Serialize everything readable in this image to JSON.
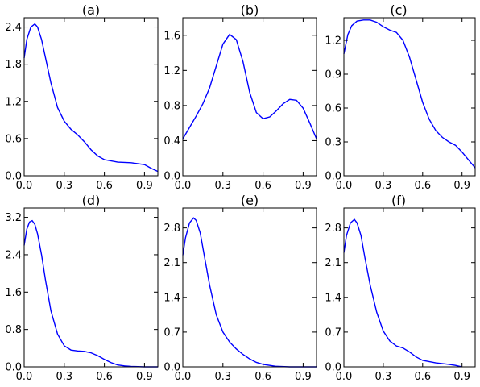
{
  "chart_data": [
    {
      "type": "line",
      "title": "(a)",
      "xlim": [
        0,
        1
      ],
      "ylim": [
        0,
        2.55
      ],
      "xticks": [
        "0.0",
        "0.3",
        "0.6",
        "0.9"
      ],
      "xtick_values": [
        0,
        0.3,
        0.6,
        0.9
      ],
      "yticks": [
        "0.0",
        "0.6",
        "1.2",
        "1.8",
        "2.4"
      ],
      "ytick_values": [
        0,
        0.6,
        1.2,
        1.8,
        2.4
      ],
      "grid": false,
      "series": [
        {
          "color": "#0000ff",
          "x": [
            0.0,
            0.02,
            0.05,
            0.08,
            0.1,
            0.13,
            0.16,
            0.2,
            0.25,
            0.3,
            0.35,
            0.4,
            0.45,
            0.5,
            0.55,
            0.6,
            0.7,
            0.8,
            0.9,
            0.95,
            1.0
          ],
          "y": [
            1.9,
            2.2,
            2.4,
            2.45,
            2.4,
            2.2,
            1.9,
            1.5,
            1.1,
            0.88,
            0.75,
            0.66,
            0.55,
            0.42,
            0.32,
            0.26,
            0.22,
            0.21,
            0.18,
            0.12,
            0.07
          ]
        }
      ]
    },
    {
      "type": "line",
      "title": "(b)",
      "xlim": [
        0,
        1
      ],
      "ylim": [
        0,
        1.8
      ],
      "xticks": [
        "0.0",
        "0.3",
        "0.6",
        "0.9"
      ],
      "xtick_values": [
        0,
        0.3,
        0.6,
        0.9
      ],
      "yticks": [
        "0.0",
        "0.4",
        "0.8",
        "1.2",
        "1.6"
      ],
      "ytick_values": [
        0,
        0.4,
        0.8,
        1.2,
        1.6
      ],
      "grid": false,
      "series": [
        {
          "color": "#0000ff",
          "x": [
            0.0,
            0.05,
            0.1,
            0.15,
            0.2,
            0.25,
            0.3,
            0.35,
            0.4,
            0.45,
            0.5,
            0.55,
            0.6,
            0.65,
            0.7,
            0.75,
            0.8,
            0.85,
            0.9,
            0.95,
            1.0
          ],
          "y": [
            0.42,
            0.55,
            0.68,
            0.82,
            1.0,
            1.25,
            1.5,
            1.61,
            1.55,
            1.3,
            0.95,
            0.72,
            0.65,
            0.67,
            0.74,
            0.82,
            0.87,
            0.86,
            0.77,
            0.6,
            0.42
          ]
        }
      ]
    },
    {
      "type": "line",
      "title": "(c)",
      "xlim": [
        0,
        1
      ],
      "ylim": [
        0,
        1.4
      ],
      "xticks": [
        "0.0",
        "0.3",
        "0.6",
        "0.9"
      ],
      "xtick_values": [
        0,
        0.3,
        0.6,
        0.9
      ],
      "yticks": [
        "0.0",
        "0.3",
        "0.6",
        "0.9",
        "1.2"
      ],
      "ytick_values": [
        0,
        0.3,
        0.6,
        0.9,
        1.2
      ],
      "grid": false,
      "series": [
        {
          "color": "#0000ff",
          "x": [
            0.0,
            0.03,
            0.06,
            0.1,
            0.15,
            0.2,
            0.25,
            0.3,
            0.35,
            0.4,
            0.45,
            0.5,
            0.55,
            0.6,
            0.65,
            0.7,
            0.75,
            0.8,
            0.85,
            0.9,
            0.95,
            1.0
          ],
          "y": [
            1.08,
            1.25,
            1.33,
            1.37,
            1.38,
            1.38,
            1.36,
            1.32,
            1.29,
            1.27,
            1.2,
            1.05,
            0.85,
            0.65,
            0.5,
            0.4,
            0.34,
            0.3,
            0.27,
            0.21,
            0.14,
            0.07
          ]
        }
      ]
    },
    {
      "type": "line",
      "title": "(d)",
      "xlim": [
        0,
        1
      ],
      "ylim": [
        0,
        3.4
      ],
      "xticks": [
        "0.0",
        "0.3",
        "0.6",
        "0.9"
      ],
      "xtick_values": [
        0,
        0.3,
        0.6,
        0.9
      ],
      "yticks": [
        "0.0",
        "0.8",
        "1.6",
        "2.4",
        "3.2"
      ],
      "ytick_values": [
        0,
        0.8,
        1.6,
        2.4,
        3.2
      ],
      "grid": false,
      "series": [
        {
          "color": "#0000ff",
          "x": [
            0.0,
            0.02,
            0.04,
            0.06,
            0.08,
            0.1,
            0.13,
            0.16,
            0.2,
            0.25,
            0.3,
            0.35,
            0.4,
            0.45,
            0.5,
            0.55,
            0.6,
            0.65,
            0.7,
            0.75,
            0.8,
            0.9,
            1.0
          ],
          "y": [
            2.6,
            2.95,
            3.1,
            3.13,
            3.05,
            2.85,
            2.4,
            1.85,
            1.2,
            0.7,
            0.45,
            0.36,
            0.34,
            0.33,
            0.3,
            0.24,
            0.16,
            0.09,
            0.04,
            0.02,
            0.01,
            0.0,
            0.0
          ]
        }
      ]
    },
    {
      "type": "line",
      "title": "(e)",
      "xlim": [
        0,
        1
      ],
      "ylim": [
        0,
        3.2
      ],
      "xticks": [
        "0.0",
        "0.3",
        "0.6",
        "0.9"
      ],
      "xtick_values": [
        0,
        0.3,
        0.6,
        0.9
      ],
      "yticks": [
        "0.0",
        "0.7",
        "1.4",
        "2.1",
        "2.8"
      ],
      "ytick_values": [
        0,
        0.7,
        1.4,
        2.1,
        2.8
      ],
      "grid": false,
      "series": [
        {
          "color": "#0000ff",
          "x": [
            0.0,
            0.02,
            0.05,
            0.08,
            0.1,
            0.13,
            0.16,
            0.2,
            0.25,
            0.3,
            0.35,
            0.4,
            0.45,
            0.5,
            0.55,
            0.6,
            0.7,
            0.8,
            0.9,
            1.0
          ],
          "y": [
            2.25,
            2.6,
            2.9,
            3.0,
            2.95,
            2.7,
            2.25,
            1.65,
            1.05,
            0.7,
            0.5,
            0.36,
            0.25,
            0.16,
            0.09,
            0.05,
            0.01,
            0.0,
            0.0,
            0.0
          ]
        }
      ]
    },
    {
      "type": "line",
      "title": "(f)",
      "xlim": [
        0,
        1
      ],
      "ylim": [
        0,
        3.2
      ],
      "xticks": [
        "0.0",
        "0.3",
        "0.6",
        "0.9"
      ],
      "xtick_values": [
        0,
        0.3,
        0.6,
        0.9
      ],
      "yticks": [
        "0.0",
        "0.7",
        "1.4",
        "2.1",
        "2.8"
      ],
      "ytick_values": [
        0,
        0.7,
        1.4,
        2.1,
        2.8
      ],
      "grid": false,
      "series": [
        {
          "color": "#0000ff",
          "x": [
            0.0,
            0.02,
            0.05,
            0.08,
            0.1,
            0.13,
            0.16,
            0.2,
            0.25,
            0.3,
            0.35,
            0.4,
            0.45,
            0.5,
            0.55,
            0.6,
            0.7,
            0.8,
            0.85,
            0.9
          ],
          "y": [
            2.3,
            2.65,
            2.9,
            2.97,
            2.9,
            2.65,
            2.2,
            1.65,
            1.1,
            0.72,
            0.52,
            0.42,
            0.38,
            0.3,
            0.2,
            0.13,
            0.08,
            0.05,
            0.03,
            0.0
          ]
        }
      ]
    }
  ]
}
